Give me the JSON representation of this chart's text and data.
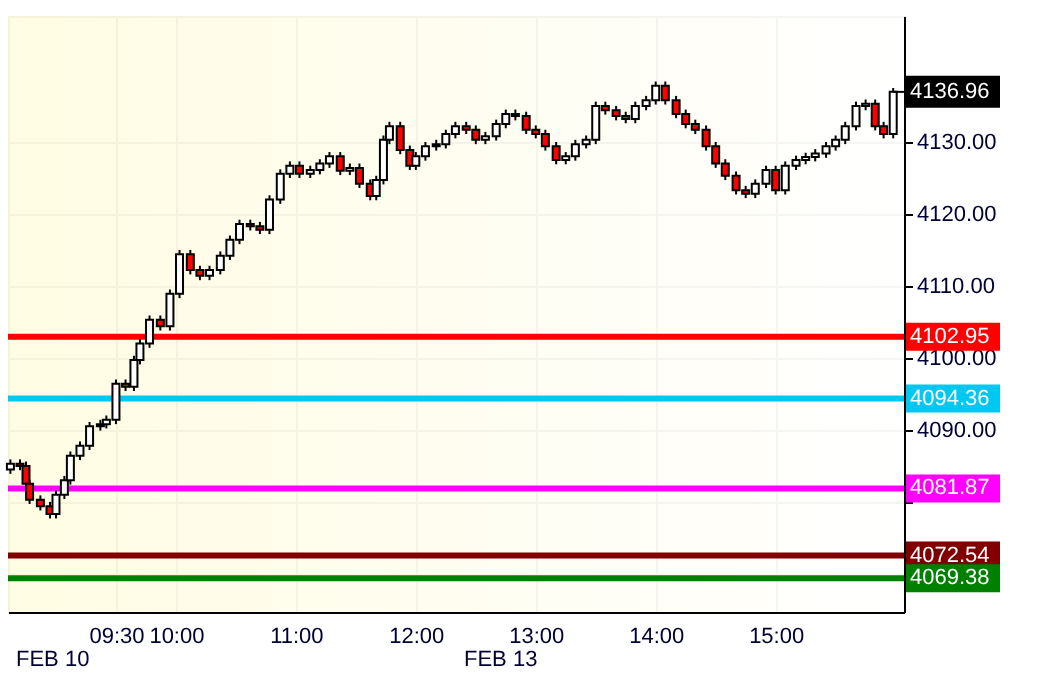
{
  "chart_data": {
    "type": "candlestick",
    "x": [
      8.62,
      8.7,
      8.75,
      8.78,
      8.87,
      8.95,
      9.0,
      9.07,
      9.12,
      9.2,
      9.28,
      9.37,
      9.42,
      9.5,
      9.58,
      9.65,
      9.7,
      9.78,
      9.87,
      9.95,
      10.03,
      10.12,
      10.2,
      10.28,
      10.37,
      10.45,
      10.53,
      10.62,
      10.7,
      10.78,
      10.87,
      10.95,
      11.03,
      11.12,
      11.2,
      11.28,
      11.37,
      11.45,
      11.53,
      11.62,
      11.67,
      11.73,
      11.78,
      11.87,
      11.95,
      12.0,
      12.08,
      12.17,
      12.25,
      12.33,
      12.42,
      12.5,
      12.58,
      12.67,
      12.75,
      12.83,
      12.92,
      13.0,
      13.08,
      13.17,
      13.25,
      13.33,
      13.42,
      13.5,
      13.58,
      13.67,
      13.75,
      13.83,
      13.92,
      14.0,
      14.08,
      14.17,
      14.25,
      14.33,
      14.42,
      14.5,
      14.58,
      14.67,
      14.75,
      14.83,
      14.92,
      15.0,
      15.08,
      15.17,
      15.25,
      15.33,
      15.42,
      15.5,
      15.58,
      15.67,
      15.75,
      15.83,
      15.9,
      15.98
    ],
    "ohlc": [
      [
        4084.5,
        4085.9,
        4083.9,
        4085.3
      ],
      [
        4085.3,
        4085.9,
        4084.4,
        4085.0
      ],
      [
        4085.0,
        4085.6,
        4081.9,
        4082.5
      ],
      [
        4082.5,
        4083.1,
        4079.7,
        4080.3
      ],
      [
        4080.3,
        4080.9,
        4078.8,
        4079.4
      ],
      [
        4079.4,
        4080.0,
        4077.7,
        4078.3
      ],
      [
        4078.3,
        4081.6,
        4077.7,
        4081.0
      ],
      [
        4081.0,
        4083.6,
        4080.4,
        4083.0
      ],
      [
        4083.0,
        4087.0,
        4082.4,
        4086.4
      ],
      [
        4086.4,
        4088.4,
        4085.8,
        4087.8
      ],
      [
        4087.8,
        4091.1,
        4087.2,
        4090.5
      ],
      [
        4090.5,
        4091.4,
        4089.9,
        4090.8
      ],
      [
        4090.8,
        4092.0,
        4090.2,
        4091.4
      ],
      [
        4091.4,
        4097.0,
        4090.8,
        4096.4
      ],
      [
        4096.4,
        4097.0,
        4095.4,
        4096.0
      ],
      [
        4096.0,
        4100.3,
        4095.4,
        4099.7
      ],
      [
        4099.7,
        4102.6,
        4099.1,
        4102.0
      ],
      [
        4102.0,
        4105.9,
        4101.4,
        4105.3
      ],
      [
        4105.3,
        4105.9,
        4103.8,
        4104.4
      ],
      [
        4104.4,
        4109.5,
        4103.8,
        4108.9
      ],
      [
        4108.9,
        4115.0,
        4108.3,
        4114.4
      ],
      [
        4114.4,
        4115.0,
        4111.6,
        4112.2
      ],
      [
        4112.2,
        4112.8,
        4110.8,
        4111.4
      ],
      [
        4111.4,
        4112.8,
        4110.8,
        4112.2
      ],
      [
        4112.2,
        4114.8,
        4111.6,
        4114.2
      ],
      [
        4114.2,
        4117.0,
        4113.6,
        4116.4
      ],
      [
        4116.4,
        4119.2,
        4115.8,
        4118.6
      ],
      [
        4118.6,
        4119.2,
        4117.7,
        4118.3
      ],
      [
        4118.3,
        4118.9,
        4117.2,
        4117.8
      ],
      [
        4117.8,
        4122.6,
        4117.2,
        4122.0
      ],
      [
        4122.0,
        4126.2,
        4121.4,
        4125.6
      ],
      [
        4125.6,
        4127.3,
        4125.0,
        4126.7
      ],
      [
        4126.7,
        4127.3,
        4125.0,
        4125.6
      ],
      [
        4125.6,
        4126.7,
        4125.0,
        4126.1
      ],
      [
        4126.1,
        4127.6,
        4125.5,
        4127.0
      ],
      [
        4127.0,
        4128.6,
        4126.4,
        4128.0
      ],
      [
        4128.0,
        4128.6,
        4125.4,
        4126.0
      ],
      [
        4126.0,
        4127.0,
        4125.4,
        4126.4
      ],
      [
        4126.4,
        4127.0,
        4123.6,
        4124.2
      ],
      [
        4124.2,
        4124.8,
        4121.9,
        4122.5
      ],
      [
        4122.5,
        4125.3,
        4121.9,
        4124.7
      ],
      [
        4124.7,
        4130.9,
        4124.1,
        4130.3
      ],
      [
        4130.3,
        4132.8,
        4129.7,
        4132.2
      ],
      [
        4132.2,
        4132.8,
        4128.3,
        4128.9
      ],
      [
        4128.9,
        4129.5,
        4126.1,
        4126.7
      ],
      [
        4126.7,
        4128.6,
        4126.1,
        4128.0
      ],
      [
        4128.0,
        4130.0,
        4127.4,
        4129.4
      ],
      [
        4129.4,
        4130.3,
        4128.8,
        4129.7
      ],
      [
        4129.7,
        4131.7,
        4129.1,
        4131.1
      ],
      [
        4131.1,
        4132.8,
        4130.5,
        4132.2
      ],
      [
        4132.2,
        4132.8,
        4131.1,
        4131.7
      ],
      [
        4131.7,
        4132.3,
        4129.7,
        4130.3
      ],
      [
        4130.3,
        4131.4,
        4129.7,
        4130.8
      ],
      [
        4130.8,
        4133.1,
        4130.2,
        4132.5
      ],
      [
        4132.5,
        4134.5,
        4131.9,
        4133.9
      ],
      [
        4133.9,
        4134.5,
        4133.0,
        4133.6
      ],
      [
        4133.6,
        4134.2,
        4131.1,
        4131.7
      ],
      [
        4131.7,
        4132.3,
        4130.5,
        4131.1
      ],
      [
        4131.1,
        4131.7,
        4128.8,
        4129.4
      ],
      [
        4129.4,
        4130.0,
        4126.9,
        4127.5
      ],
      [
        4127.5,
        4128.6,
        4126.9,
        4128.0
      ],
      [
        4128.0,
        4130.3,
        4127.4,
        4129.7
      ],
      [
        4129.7,
        4130.9,
        4129.1,
        4130.3
      ],
      [
        4130.3,
        4135.6,
        4129.7,
        4135.0
      ],
      [
        4135.0,
        4135.6,
        4133.8,
        4134.4
      ],
      [
        4134.4,
        4135.0,
        4133.0,
        4133.6
      ],
      [
        4133.6,
        4134.2,
        4132.6,
        4133.2
      ],
      [
        4133.2,
        4135.6,
        4132.6,
        4135.0
      ],
      [
        4135.0,
        4136.4,
        4134.4,
        4135.8
      ],
      [
        4135.8,
        4138.4,
        4135.2,
        4137.8
      ],
      [
        4137.8,
        4138.4,
        4135.2,
        4135.8
      ],
      [
        4135.8,
        4136.4,
        4133.3,
        4133.9
      ],
      [
        4133.9,
        4134.5,
        4131.9,
        4132.5
      ],
      [
        4132.5,
        4133.1,
        4131.1,
        4131.7
      ],
      [
        4131.7,
        4132.3,
        4128.8,
        4129.4
      ],
      [
        4129.4,
        4130.0,
        4126.4,
        4127.0
      ],
      [
        4127.0,
        4127.6,
        4124.7,
        4125.3
      ],
      [
        4125.3,
        4125.9,
        4122.7,
        4123.3
      ],
      [
        4123.3,
        4123.9,
        4122.2,
        4122.8
      ],
      [
        4122.8,
        4124.8,
        4122.2,
        4124.2
      ],
      [
        4124.2,
        4126.7,
        4123.6,
        4126.1
      ],
      [
        4126.1,
        4126.7,
        4122.7,
        4123.3
      ],
      [
        4123.3,
        4127.3,
        4122.7,
        4126.7
      ],
      [
        4126.7,
        4128.1,
        4126.1,
        4127.5
      ],
      [
        4127.5,
        4128.5,
        4126.9,
        4127.9
      ],
      [
        4127.9,
        4129.0,
        4127.3,
        4128.4
      ],
      [
        4128.4,
        4130.0,
        4127.8,
        4129.4
      ],
      [
        4129.4,
        4130.9,
        4128.8,
        4130.3
      ],
      [
        4130.3,
        4132.8,
        4129.7,
        4132.2
      ],
      [
        4132.2,
        4135.6,
        4131.6,
        4135.0
      ],
      [
        4135.0,
        4135.9,
        4134.4,
        4135.3
      ],
      [
        4135.3,
        4135.9,
        4131.6,
        4132.2
      ],
      [
        4132.2,
        4132.8,
        4130.5,
        4131.1
      ],
      [
        4131.1,
        4137.5,
        4130.5,
        4136.96
      ]
    ],
    "colors": [
      "#ffffff",
      "#ff0000",
      "#ff0000",
      "#ff0000",
      "#ff0000",
      "#ff0000",
      "#ffffff",
      "#ffffff",
      "#ffffff",
      "#ffffff",
      "#ffffff",
      "#ffffff",
      "#ffffff",
      "#ffffff",
      "#ff0000",
      "#ffffff",
      "#ffffff",
      "#ffffff",
      "#ff0000",
      "#ffffff",
      "#ffffff",
      "#ff0000",
      "#ff0000",
      "#ffffff",
      "#ffffff",
      "#ffffff",
      "#ffffff",
      "#ff0000",
      "#ff0000",
      "#ffffff",
      "#ffffff",
      "#ffffff",
      "#ff0000",
      "#ffffff",
      "#ffffff",
      "#ffffff",
      "#ff0000",
      "#ffffff",
      "#ff0000",
      "#ff0000",
      "#ffffff",
      "#ffffff",
      "#ffffff",
      "#ff0000",
      "#ff0000",
      "#ffffff",
      "#ffffff",
      "#ffffff",
      "#ffffff",
      "#ffffff",
      "#ff0000",
      "#ff0000",
      "#ffffff",
      "#ffffff",
      "#ffffff",
      "#ff0000",
      "#ff0000",
      "#ff0000",
      "#ff0000",
      "#ff0000",
      "#ffffff",
      "#ffffff",
      "#ffffff",
      "#ffffff",
      "#ff0000",
      "#ff0000",
      "#ff0000",
      "#ffffff",
      "#ffffff",
      "#ffffff",
      "#ff0000",
      "#ff0000",
      "#ff0000",
      "#ff0000",
      "#ff0000",
      "#ff0000",
      "#ff0000",
      "#ff0000",
      "#ff0000",
      "#ffffff",
      "#ffffff",
      "#ff0000",
      "#ffffff",
      "#ffffff",
      "#ffffff",
      "#ffffff",
      "#ffffff",
      "#ffffff",
      "#ffffff",
      "#ffffff",
      "#ffffff",
      "#ff0000",
      "#ff0000",
      "#ffffff"
    ],
    "xlim": [
      8.6,
      16.07
    ],
    "xticks": [
      {
        "value": 9.5,
        "label": "09:30"
      },
      {
        "value": 10,
        "label": "10:00"
      },
      {
        "value": 11,
        "label": "11:00"
      },
      {
        "value": 12,
        "label": "12:00"
      },
      {
        "value": 13,
        "label": "13:00"
      },
      {
        "value": 14,
        "label": "14:00"
      },
      {
        "value": 15,
        "label": "15:00"
      }
    ],
    "ylim": [
      4064.7,
      4147.5
    ],
    "yticks": [
      {
        "value": 4070,
        "label": null
      },
      {
        "value": 4080,
        "label": null
      },
      {
        "value": 4090,
        "label": "4090.00"
      },
      {
        "value": 4100,
        "label": "4100.00"
      },
      {
        "value": 4110,
        "label": "4110.00"
      },
      {
        "value": 4120,
        "label": "4120.00"
      },
      {
        "value": 4130,
        "label": "4130.00"
      }
    ],
    "grid": true,
    "ref_lines": [
      {
        "axis": "y",
        "value": 4102.95,
        "label": "4102.95",
        "color": "#ff0000"
      },
      {
        "axis": "y",
        "value": 4094.36,
        "label": "4094.36",
        "color": "#00c8f0"
      },
      {
        "axis": "y",
        "value": 4081.87,
        "label": "4081.87",
        "color": "#ff00ff"
      },
      {
        "axis": "y",
        "value": 4072.54,
        "label": "4072.54",
        "color": "#800000"
      },
      {
        "axis": "y",
        "value": 4069.38,
        "label": "4069.38",
        "color": "#008000"
      }
    ],
    "annotations": [
      {
        "text": "4136.96",
        "x": 15.98,
        "y": 4136.96
      },
      "FEB 10",
      "FEB 13"
    ]
  }
}
